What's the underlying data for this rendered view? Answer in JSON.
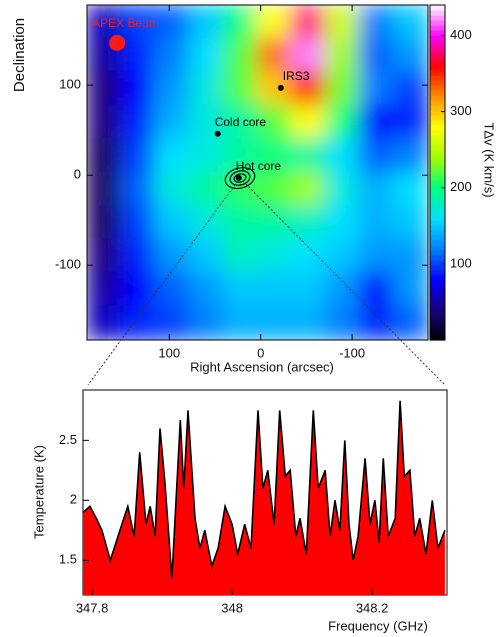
{
  "chart_data": [
    {
      "type": "heatmap",
      "xlabel": "Right Ascension (arcsec)",
      "ylabel": "Declination",
      "colorbar_label": "TΔv (K km/s)",
      "xlim": [
        190,
        -183
      ],
      "ylim": [
        -183,
        189
      ],
      "xticks": [
        100,
        0,
        -100
      ],
      "yticks": [
        100,
        0,
        -100
      ],
      "clim": [
        0,
        440
      ],
      "cticks": [
        100,
        200,
        300,
        400
      ],
      "colormap": [
        "#000000",
        "#1a0080",
        "#0000ff",
        "#0080ff",
        "#00e0ff",
        "#00ff80",
        "#a0ff00",
        "#ffff00",
        "#ff9000",
        "#ff0000",
        "#ff00ff",
        "#ffffff"
      ],
      "x": [
        171,
        134,
        97,
        59,
        22,
        -15,
        -52,
        -90,
        -127,
        -164
      ],
      "y": [
        170,
        133,
        96,
        59,
        22,
        -16,
        -53,
        -90,
        -127,
        -164
      ],
      "z": [
        [
          60,
          100,
          110,
          150,
          200,
          280,
          380,
          260,
          120,
          150
        ],
        [
          50,
          90,
          120,
          160,
          220,
          330,
          420,
          240,
          110,
          130
        ],
        [
          40,
          80,
          130,
          170,
          220,
          300,
          360,
          230,
          120,
          100
        ],
        [
          40,
          90,
          140,
          170,
          190,
          220,
          280,
          200,
          80,
          90
        ],
        [
          30,
          100,
          160,
          170,
          190,
          200,
          190,
          160,
          110,
          120
        ],
        [
          30,
          110,
          170,
          190,
          210,
          220,
          240,
          170,
          140,
          160
        ],
        [
          30,
          100,
          150,
          170,
          190,
          190,
          180,
          160,
          140,
          150
        ],
        [
          40,
          90,
          130,
          150,
          180,
          170,
          160,
          150,
          130,
          130
        ],
        [
          50,
          80,
          110,
          130,
          150,
          150,
          150,
          130,
          80,
          130
        ],
        [
          60,
          90,
          100,
          120,
          140,
          140,
          140,
          120,
          90,
          110
        ]
      ],
      "markers": [
        {
          "label": "APEX Beam",
          "x": 157,
          "y": 147,
          "color": "#ff1a1a"
        },
        {
          "label": "IRS3",
          "x": -22,
          "y": 97,
          "color": "#000000"
        },
        {
          "label": "Cold core",
          "x": 47,
          "y": 46,
          "color": "#000000"
        },
        {
          "label": "Hot core",
          "x": 24,
          "y": -3,
          "color": "#000000"
        }
      ]
    },
    {
      "type": "area",
      "xlabel": "Frequency (GHz)",
      "ylabel": "Temperature (K)",
      "xlim": [
        347.787,
        348.307
      ],
      "ylim": [
        1.21,
        2.92
      ],
      "xticks": [
        347.8,
        348,
        348.2
      ],
      "yticks": [
        1.5,
        2,
        2.5
      ],
      "color": "#ff0000",
      "x": [
        347.787,
        347.797,
        347.806,
        347.814,
        347.826,
        347.837,
        347.851,
        347.86,
        347.868,
        347.877,
        347.883,
        347.89,
        347.897,
        347.904,
        347.914,
        347.926,
        347.931,
        347.937,
        347.947,
        347.954,
        347.961,
        347.971,
        347.98,
        347.99,
        348.0,
        348.008,
        348.018,
        348.027,
        348.037,
        348.044,
        348.051,
        348.06,
        348.068,
        348.076,
        348.083,
        348.091,
        348.097,
        348.106,
        348.116,
        348.123,
        348.133,
        348.14,
        348.147,
        348.154,
        348.161,
        348.167,
        348.173,
        348.18,
        348.19,
        348.197,
        348.204,
        348.21,
        348.216,
        348.223,
        348.233,
        348.24,
        348.246,
        348.254,
        348.261,
        348.268,
        348.277,
        348.286,
        348.294,
        348.304
      ],
      "values": [
        1.9,
        1.95,
        1.85,
        1.75,
        1.5,
        1.7,
        1.95,
        1.7,
        2.4,
        1.8,
        1.95,
        1.7,
        2.6,
        2.15,
        1.35,
        2.67,
        2.1,
        2.75,
        1.85,
        1.6,
        1.75,
        1.45,
        1.6,
        1.95,
        1.8,
        1.55,
        1.8,
        1.6,
        2.75,
        2.1,
        2.25,
        1.8,
        2.75,
        2.2,
        2.25,
        1.7,
        1.85,
        1.55,
        2.75,
        2.1,
        2.25,
        1.7,
        2.0,
        1.75,
        2.5,
        1.8,
        1.5,
        1.7,
        2.35,
        1.8,
        2.0,
        1.65,
        2.35,
        1.7,
        1.85,
        2.83,
        2.2,
        2.25,
        1.7,
        1.85,
        1.55,
        2.0,
        1.6,
        1.75
      ]
    }
  ]
}
